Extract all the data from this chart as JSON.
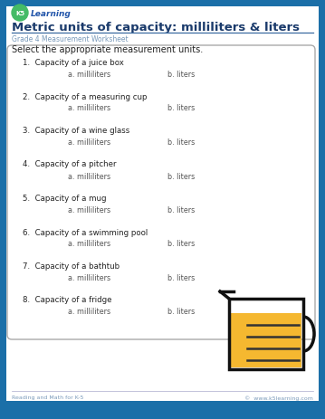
{
  "title": "Metric units of capacity: milliliters & liters",
  "subtitle": "Grade 4 Measurement Worksheet",
  "instruction": "Select the appropriate measurement units.",
  "questions": [
    "1.  Capacity of a juice box",
    "2.  Capacity of a measuring cup",
    "3.  Capacity of a wine glass",
    "4.  Capacity of a pitcher",
    "5.  Capacity of a mug",
    "6.  Capacity of a swimming pool",
    "7.  Capacity of a bathtub",
    "8.  Capacity of a fridge"
  ],
  "option_a": "a. milliliters",
  "option_b": "b. liters",
  "bg_color": "#1b6fa8",
  "paper_color": "#ffffff",
  "title_color": "#1a3a6b",
  "subtitle_color": "#7a9aba",
  "question_color": "#222222",
  "option_color": "#555555",
  "footer_left": "Reading and Math for K-5",
  "footer_right": "©  www.k5learning.com",
  "footer_color": "#7a9aba",
  "line_color": "#3a6aa0",
  "box_border_color": "#aaaaaa",
  "jug_fill_color": "#f5b830",
  "jug_line_color": "#111111"
}
